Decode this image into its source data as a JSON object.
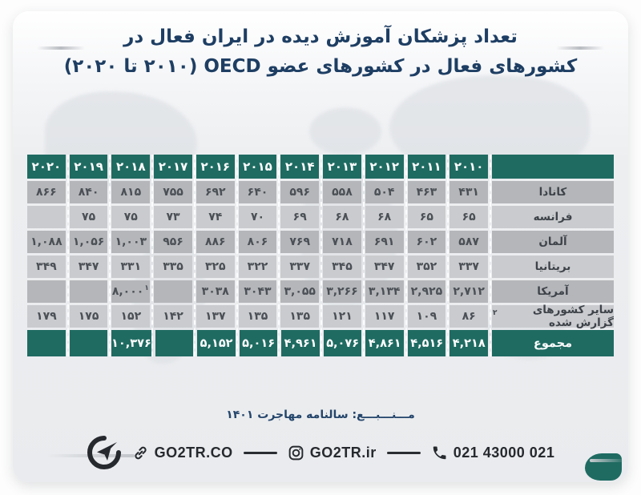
{
  "colors": {
    "teal": "#1f6b62",
    "navy": "#1e3e63",
    "row_dark": "#b4b6b9",
    "row_light": "#c9cbce",
    "ink": "#26292e"
  },
  "title": {
    "line1": "تعداد پزشکان آموزش دیده در ایران فعال در",
    "line2": "کشورهای فعال در کشورهای عضو OECD (۲۰۱۰ تا ۲۰۲۰)"
  },
  "table": {
    "years": [
      "۲۰۲۰",
      "۲۰۱۹",
      "۲۰۱۸",
      "۲۰۱۷",
      "۲۰۱۶",
      "۲۰۱۵",
      "۲۰۱۴",
      "۲۰۱۳",
      "۲۰۱۲",
      "۲۰۱۱",
      "۲۰۱۰"
    ],
    "rows": [
      {
        "label": "کانادا",
        "values": [
          "۸۶۶",
          "۸۴۰",
          "۸۱۵",
          "۷۵۵",
          "۶۹۲",
          "۶۴۰",
          "۵۹۶",
          "۵۵۸",
          "۵۰۴",
          "۴۶۳",
          "۴۳۱"
        ]
      },
      {
        "label": "فرانسه",
        "values": [
          "",
          "۷۵",
          "۷۵",
          "۷۳",
          "۷۴",
          "۷۰",
          "۶۹",
          "۶۸",
          "۶۸",
          "۶۵",
          "۶۵"
        ]
      },
      {
        "label": "آلمان",
        "values": [
          "۱,۰۸۸",
          "۱,۰۵۶",
          "۱,۰۰۳",
          "۹۵۶",
          "۸۸۶",
          "۸۰۶",
          "۷۶۹",
          "۷۱۸",
          "۶۹۱",
          "۶۰۲",
          "۵۸۷"
        ]
      },
      {
        "label": "بریتانیا",
        "values": [
          "۳۴۹",
          "۳۴۷",
          "۳۳۱",
          "۳۳۵",
          "۳۲۵",
          "۳۲۲",
          "۳۳۷",
          "۳۴۵",
          "۳۴۷",
          "۳۵۲",
          "۳۳۷"
        ]
      },
      {
        "label": "آمریکا",
        "values": [
          "",
          "",
          "۸,۰۰۰",
          "",
          "۳۰۳۸",
          "۳۰۴۳",
          "۳,۰۵۵",
          "۳,۲۶۶",
          "۳,۱۳۴",
          "۲,۹۲۵",
          "۲,۷۱۲"
        ],
        "value_sups": {
          "2": "۱"
        }
      },
      {
        "label": "سایر کشورهای گزارش شده",
        "label_sup": "۲",
        "values": [
          "۱۷۹",
          "۱۷۵",
          "۱۵۲",
          "۱۴۲",
          "۱۳۷",
          "۱۳۵",
          "۱۳۵",
          "۱۲۱",
          "۱۱۷",
          "۱۰۹",
          "۸۶"
        ]
      },
      {
        "label": "مجموع",
        "style": "total",
        "values": [
          "",
          "",
          "۱۰,۳۷۶",
          "",
          "۵,۱۵۲",
          "۵,۰۱۶",
          "۴,۹۶۱",
          "۵,۰۷۶",
          "۴,۸۶۱",
          "۴,۵۱۶",
          "۴,۲۱۸"
        ]
      }
    ]
  },
  "source": {
    "text": "مـــنـــبـــع: سالنامه مهاجرت ۱۴۰۱"
  },
  "footer": {
    "website": "GO2TR.CO",
    "instagram": "GO2TR.ir",
    "phone": "021 43000 021"
  },
  "chart_data": {
    "type": "table",
    "title": "تعداد پزشکان آموزش دیده در ایران فعال در کشورهای عضو OECD (۲۰۱۰ تا ۲۰۲۰)",
    "categories": [
      2020,
      2019,
      2018,
      2017,
      2016,
      2015,
      2014,
      2013,
      2012,
      2011,
      2010
    ],
    "series": [
      {
        "name": "کانادا (Canada)",
        "values": [
          866,
          840,
          815,
          755,
          692,
          640,
          596,
          558,
          504,
          463,
          431
        ]
      },
      {
        "name": "فرانسه (France)",
        "values": [
          null,
          75,
          75,
          73,
          74,
          70,
          69,
          68,
          68,
          65,
          65
        ]
      },
      {
        "name": "آلمان (Germany)",
        "values": [
          1088,
          1056,
          1003,
          956,
          886,
          806,
          769,
          718,
          691,
          602,
          587
        ]
      },
      {
        "name": "بریتانیا (Britain)",
        "values": [
          349,
          347,
          331,
          335,
          325,
          322,
          337,
          345,
          347,
          352,
          337
        ]
      },
      {
        "name": "آمریکا (USA)",
        "values": [
          null,
          null,
          8000,
          null,
          3038,
          3043,
          3055,
          3266,
          3134,
          2925,
          2712
        ]
      },
      {
        "name": "سایر کشورهای گزارش شده (Other reported countries)",
        "values": [
          179,
          175,
          152,
          142,
          137,
          135,
          135,
          121,
          117,
          109,
          86
        ]
      },
      {
        "name": "مجموع (Total)",
        "values": [
          null,
          null,
          10376,
          null,
          5152,
          5016,
          4961,
          5076,
          4861,
          4516,
          4218
        ]
      }
    ],
    "footnotes": [
      "۱ (on ۸,۰۰۰ value, year 2018, USA)",
      "۲ (on سایر کشورهای گزارش شده)"
    ],
    "source": "سالنامه مهاجرت ۱۴۰۱",
    "legend_position": "none",
    "grid": false
  }
}
